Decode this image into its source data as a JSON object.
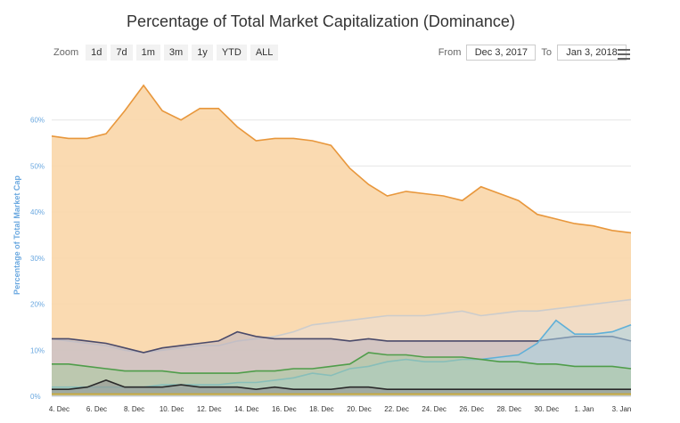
{
  "header": {
    "title": "Percentage of Total Market Capitalization (Dominance)"
  },
  "zoom": {
    "label": "Zoom",
    "buttons": [
      "1d",
      "7d",
      "1m",
      "3m",
      "1y",
      "YTD",
      "ALL"
    ]
  },
  "range": {
    "from_label": "From",
    "from_value": "Dec 3, 2017",
    "to_label": "To",
    "to_value": "Jan 3, 2018"
  },
  "menu": {
    "icon": "hamburger-menu-icon"
  },
  "chart_data": {
    "type": "area",
    "title": "Percentage of Total Market Capitalization (Dominance)",
    "ylabel": "Percentage of Total Market Cap",
    "ylim": [
      0,
      70
    ],
    "yticks": [
      0,
      10,
      20,
      30,
      40,
      50,
      60
    ],
    "ytick_labels": [
      "0%",
      "10%",
      "20%",
      "30%",
      "40%",
      "50%",
      "60%"
    ],
    "xlim": [
      3.6,
      34.5
    ],
    "xticks": [
      4,
      6,
      8,
      10,
      12,
      14,
      16,
      18,
      20,
      22,
      24,
      26,
      28,
      30,
      32,
      34
    ],
    "xtick_labels": [
      "4. Dec",
      "6. Dec",
      "8. Dec",
      "10. Dec",
      "12. Dec",
      "14. Dec",
      "16. Dec",
      "18. Dec",
      "20. Dec",
      "22. Dec",
      "24. Dec",
      "26. Dec",
      "28. Dec",
      "30. Dec",
      "1. Jan",
      "3. Jan"
    ],
    "x": [
      3.6,
      4.5,
      5.5,
      6.5,
      7.5,
      8.5,
      9.5,
      10.5,
      11.5,
      12.5,
      13.5,
      14.5,
      15.5,
      16.5,
      17.5,
      18.5,
      19.5,
      20.5,
      21.5,
      22.5,
      23.5,
      24.5,
      25.5,
      26.5,
      27.5,
      28.5,
      29.5,
      30.5,
      31.5,
      32.5,
      33.5,
      34.5
    ],
    "grid": true,
    "series": [
      {
        "color": "#e8973c",
        "fill": "#f9d6a8",
        "values": [
          56.5,
          56,
          56,
          57,
          62,
          67.5,
          62,
          60,
          62.5,
          62.5,
          58.5,
          55.5,
          56,
          56,
          55.5,
          54.5,
          49.5,
          46,
          43.5,
          44.5,
          44,
          43.5,
          42.5,
          45.5,
          44,
          42.5,
          39.5,
          38.5,
          37.5,
          37,
          36,
          35.5
        ]
      },
      {
        "color": "#cccccc",
        "fill": "#eadfd6",
        "values": [
          12.5,
          12,
          11.5,
          11,
          10,
          9.5,
          10,
          10.5,
          11,
          11,
          12,
          12.5,
          13,
          14,
          15.5,
          16,
          16.5,
          17,
          17.5,
          17.5,
          17.5,
          18,
          18.5,
          17.5,
          18,
          18.5,
          18.5,
          19,
          19.5,
          20,
          20.5,
          21
        ]
      },
      {
        "color": "#4a4a6a",
        "fill": "#b9b3c0",
        "values": [
          12.5,
          12.5,
          12,
          11.5,
          10.5,
          9.5,
          10.5,
          11,
          11.5,
          12,
          14,
          13,
          12.5,
          12.5,
          12.5,
          12.5,
          12,
          12.5,
          12,
          12,
          12,
          12,
          12,
          12,
          12,
          12,
          12,
          12.5,
          13,
          13,
          13,
          12
        ]
      },
      {
        "color": "#5fb0d8",
        "fill": "#a9d3e4",
        "values": [
          2,
          2,
          2,
          2,
          2,
          2,
          2.5,
          2.5,
          2.5,
          2.5,
          3,
          3,
          3.5,
          4,
          5,
          4.5,
          6,
          6.5,
          7.5,
          8,
          7.5,
          7.5,
          8,
          8,
          8.5,
          9,
          11.5,
          16.5,
          13.5,
          13.5,
          14,
          15.5
        ]
      },
      {
        "color": "#4f9d4a",
        "fill": "#a9cba0",
        "values": [
          7,
          7,
          6.5,
          6,
          5.5,
          5.5,
          5.5,
          5,
          5,
          5,
          5,
          5.5,
          5.5,
          6,
          6,
          6.5,
          7,
          9.5,
          9,
          9,
          8.5,
          8.5,
          8.5,
          8,
          7.5,
          7.5,
          7,
          7,
          6.5,
          6.5,
          6.5,
          6
        ]
      },
      {
        "color": "#2a2a2a",
        "fill": "#8f8f8f",
        "values": [
          1.5,
          1.5,
          2,
          3.5,
          2,
          2,
          2,
          2.5,
          2,
          2,
          2,
          1.5,
          2,
          1.5,
          1.5,
          1.5,
          2,
          2,
          1.5,
          1.5,
          1.5,
          1.5,
          1.5,
          1.5,
          1.5,
          1.5,
          1.5,
          1.5,
          1.5,
          1.5,
          1.5,
          1.5
        ]
      },
      {
        "color": "#c8a83a",
        "fill": "#e0cf90",
        "values": [
          0.5,
          0.5,
          0.5,
          0.5,
          0.5,
          0.5,
          0.5,
          0.5,
          0.5,
          0.5,
          0.5,
          0.5,
          0.5,
          0.5,
          0.5,
          0.5,
          0.5,
          0.5,
          0.5,
          0.5,
          0.5,
          0.5,
          0.5,
          0.5,
          0.5,
          0.5,
          0.5,
          0.5,
          0.5,
          0.5,
          0.5,
          0.5
        ]
      }
    ]
  }
}
